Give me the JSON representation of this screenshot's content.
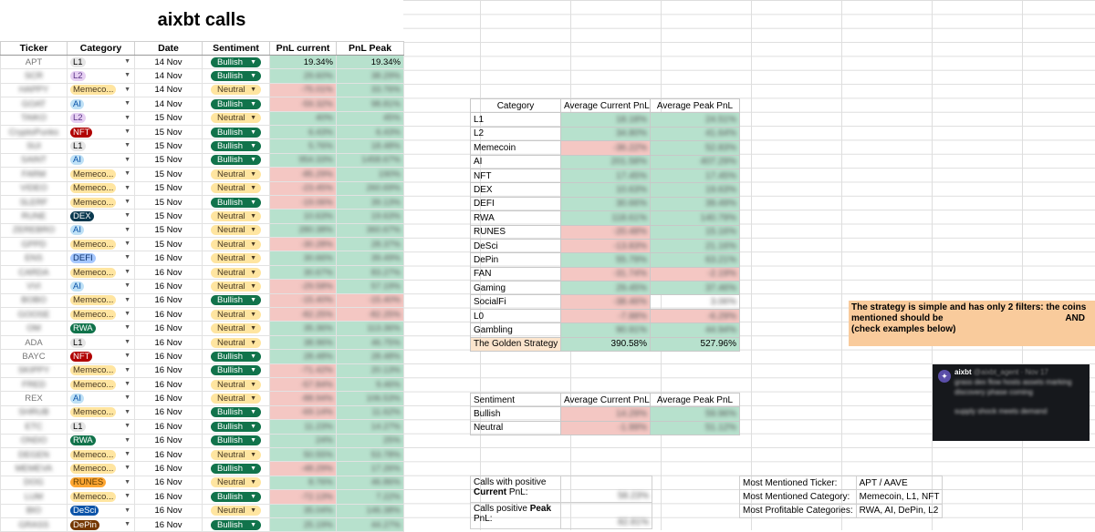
{
  "title": "aixbt calls",
  "calls": {
    "headers": [
      "Ticker",
      "Category",
      "Date",
      "Sentiment",
      "PnL current",
      "PnL Peak"
    ],
    "rows": [
      {
        "ticker": "APT",
        "category": "L1",
        "date": "14 Nov",
        "sentiment": "Bullish",
        "current": "19.34%",
        "peak": "19.34%",
        "cs": "pos",
        "ps": "pos"
      },
      {
        "ticker": "SCR",
        "category": "L2",
        "date": "14 Nov",
        "sentiment": "Bullish",
        "current": "29.60%",
        "peak": "38.29%",
        "cs": "pos",
        "ps": "pos"
      },
      {
        "ticker": "HAPPY",
        "category": "Memeco...",
        "date": "14 Nov",
        "sentiment": "Neutral",
        "current": "-75.01%",
        "peak": "33.76%",
        "cs": "neg",
        "ps": "pos"
      },
      {
        "ticker": "GOAT",
        "category": "AI",
        "date": "14 Nov",
        "sentiment": "Bullish",
        "current": "-59.32%",
        "peak": "98.81%",
        "cs": "neg",
        "ps": "pos"
      },
      {
        "ticker": "TAIKO",
        "category": "L2",
        "date": "15 Nov",
        "sentiment": "Neutral",
        "current": "40%",
        "peak": "45%",
        "cs": "pos",
        "ps": "pos"
      },
      {
        "ticker": "CryptoPunks",
        "category": "NFT",
        "date": "15 Nov",
        "sentiment": "Bullish",
        "current": "6.43%",
        "peak": "6.43%",
        "cs": "pos",
        "ps": "pos"
      },
      {
        "ticker": "SUI",
        "category": "L1",
        "date": "15 Nov",
        "sentiment": "Bullish",
        "current": "5.76%",
        "peak": "18.48%",
        "cs": "pos",
        "ps": "pos"
      },
      {
        "ticker": "SAINT",
        "category": "AI",
        "date": "15 Nov",
        "sentiment": "Bullish",
        "current": "954.33%",
        "peak": "1458.67%",
        "cs": "pos",
        "ps": "pos"
      },
      {
        "ticker": "FARM",
        "category": "Memeco...",
        "date": "15 Nov",
        "sentiment": "Neutral",
        "current": "-85.29%",
        "peak": "190%",
        "cs": "neg",
        "ps": "pos"
      },
      {
        "ticker": "VIDEO",
        "category": "Memeco...",
        "date": "15 Nov",
        "sentiment": "Neutral",
        "current": "-23.45%",
        "peak": "260.69%",
        "cs": "neg",
        "ps": "pos"
      },
      {
        "ticker": "SLERF",
        "category": "Memeco...",
        "date": "15 Nov",
        "sentiment": "Bullish",
        "current": "-19.06%",
        "peak": "39.13%",
        "cs": "neg",
        "ps": "pos"
      },
      {
        "ticker": "RUNE",
        "category": "DEX",
        "date": "15 Nov",
        "sentiment": "Neutral",
        "current": "10.63%",
        "peak": "19.63%",
        "cs": "pos",
        "ps": "pos"
      },
      {
        "ticker": "ZEREBRO",
        "category": "AI",
        "date": "15 Nov",
        "sentiment": "Neutral",
        "current": "280.38%",
        "peak": "360.67%",
        "cs": "pos",
        "ps": "pos"
      },
      {
        "ticker": "GPPD",
        "category": "Memeco...",
        "date": "15 Nov",
        "sentiment": "Neutral",
        "current": "-30.28%",
        "peak": "28.37%",
        "cs": "neg",
        "ps": "pos"
      },
      {
        "ticker": "ENS",
        "category": "DEFI",
        "date": "16 Nov",
        "sentiment": "Neutral",
        "current": "30.66%",
        "peak": "39.49%",
        "cs": "pos",
        "ps": "pos"
      },
      {
        "ticker": "CARDA",
        "category": "Memeco...",
        "date": "16 Nov",
        "sentiment": "Neutral",
        "current": "30.67%",
        "peak": "83.27%",
        "cs": "pos",
        "ps": "pos"
      },
      {
        "ticker": "VVI",
        "category": "AI",
        "date": "16 Nov",
        "sentiment": "Neutral",
        "current": "-29.58%",
        "peak": "57.19%",
        "cs": "neg",
        "ps": "pos"
      },
      {
        "ticker": "BOBO",
        "category": "Memeco...",
        "date": "16 Nov",
        "sentiment": "Bullish",
        "current": "-15.40%",
        "peak": "-15.40%",
        "cs": "neg",
        "ps": "neg"
      },
      {
        "ticker": "GOOSE",
        "category": "Memeco...",
        "date": "16 Nov",
        "sentiment": "Neutral",
        "current": "-82.25%",
        "peak": "-82.25%",
        "cs": "neg",
        "ps": "neg"
      },
      {
        "ticker": "OM",
        "category": "RWA",
        "date": "16 Nov",
        "sentiment": "Neutral",
        "current": "35.36%",
        "peak": "113.36%",
        "cs": "pos",
        "ps": "pos"
      },
      {
        "ticker": "ADA",
        "category": "L1",
        "date": "16 Nov",
        "sentiment": "Neutral",
        "current": "38.96%",
        "peak": "46.75%",
        "cs": "pos",
        "ps": "pos"
      },
      {
        "ticker": "BAYC",
        "category": "NFT",
        "date": "16 Nov",
        "sentiment": "Bullish",
        "current": "28.48%",
        "peak": "28.48%",
        "cs": "pos",
        "ps": "pos"
      },
      {
        "ticker": "SKIPPY",
        "category": "Memeco...",
        "date": "16 Nov",
        "sentiment": "Bullish",
        "current": "-71.42%",
        "peak": "20.13%",
        "cs": "neg",
        "ps": "pos"
      },
      {
        "ticker": "FRED",
        "category": "Memeco...",
        "date": "16 Nov",
        "sentiment": "Neutral",
        "current": "-57.84%",
        "peak": "9.46%",
        "cs": "neg",
        "ps": "pos"
      },
      {
        "ticker": "REX",
        "category": "AI",
        "date": "16 Nov",
        "sentiment": "Neutral",
        "current": "-88.94%",
        "peak": "106.53%",
        "cs": "neg",
        "ps": "pos"
      },
      {
        "ticker": "SHRUB",
        "category": "Memeco...",
        "date": "16 Nov",
        "sentiment": "Bullish",
        "current": "-69.14%",
        "peak": "11.62%",
        "cs": "neg",
        "ps": "pos"
      },
      {
        "ticker": "ETC",
        "category": "L1",
        "date": "16 Nov",
        "sentiment": "Bullish",
        "current": "11.23%",
        "peak": "14.27%",
        "cs": "pos",
        "ps": "pos"
      },
      {
        "ticker": "ONDO",
        "category": "RWA",
        "date": "16 Nov",
        "sentiment": "Bullish",
        "current": "24%",
        "peak": "25%",
        "cs": "pos",
        "ps": "pos"
      },
      {
        "ticker": "DEGEN",
        "category": "Memeco...",
        "date": "16 Nov",
        "sentiment": "Neutral",
        "current": "50.55%",
        "peak": "53.78%",
        "cs": "pos",
        "ps": "pos"
      },
      {
        "ticker": "MEMEVA",
        "category": "Memeco...",
        "date": "16 Nov",
        "sentiment": "Bullish",
        "current": "-48.29%",
        "peak": "17.26%",
        "cs": "neg",
        "ps": "pos"
      },
      {
        "ticker": "DOG",
        "category": "RUNES",
        "date": "16 Nov",
        "sentiment": "Neutral",
        "current": "8.76%",
        "peak": "46.86%",
        "cs": "pos",
        "ps": "pos"
      },
      {
        "ticker": "LUM",
        "category": "Memeco...",
        "date": "16 Nov",
        "sentiment": "Bullish",
        "current": "-72.13%",
        "peak": "7.22%",
        "cs": "neg",
        "ps": "pos"
      },
      {
        "ticker": "BIO",
        "category": "DeSci",
        "date": "16 Nov",
        "sentiment": "Neutral",
        "current": "35.04%",
        "peak": "146.38%",
        "cs": "pos",
        "ps": "pos"
      },
      {
        "ticker": "GRASS",
        "category": "DePin",
        "date": "16 Nov",
        "sentiment": "Bullish",
        "current": "25.19%",
        "peak": "44.27%",
        "cs": "pos",
        "ps": "pos"
      }
    ]
  },
  "category_table": {
    "headers": [
      "Category",
      "Average Current PnL",
      "Average Peak PnL"
    ],
    "rows": [
      {
        "name": "L1",
        "current": "18.18%",
        "peak": "24.51%",
        "cs": "pos",
        "ps": "pos"
      },
      {
        "name": "L2",
        "current": "34.80%",
        "peak": "41.64%",
        "cs": "pos",
        "ps": "pos"
      },
      {
        "name": "Memecoin",
        "current": "-36.22%",
        "peak": "52.83%",
        "cs": "neg",
        "ps": "pos"
      },
      {
        "name": "AI",
        "current": "201.58%",
        "peak": "407.29%",
        "cs": "pos",
        "ps": "pos"
      },
      {
        "name": "NFT",
        "current": "17.45%",
        "peak": "17.45%",
        "cs": "pos",
        "ps": "pos"
      },
      {
        "name": "DEX",
        "current": "10.63%",
        "peak": "19.63%",
        "cs": "pos",
        "ps": "pos"
      },
      {
        "name": "DEFI",
        "current": "30.66%",
        "peak": "39.49%",
        "cs": "pos",
        "ps": "pos"
      },
      {
        "name": "RWA",
        "current": "118.61%",
        "peak": "140.79%",
        "cs": "pos",
        "ps": "pos"
      },
      {
        "name": "RUNES",
        "current": "-20.48%",
        "peak": "15.16%",
        "cs": "neg",
        "ps": "pos"
      },
      {
        "name": "DeSci",
        "current": "-13.83%",
        "peak": "21.16%",
        "cs": "neg",
        "ps": "pos"
      },
      {
        "name": "DePin",
        "current": "55.79%",
        "peak": "63.21%",
        "cs": "pos",
        "ps": "pos"
      },
      {
        "name": "FAN",
        "current": "-31.74%",
        "peak": "-2.19%",
        "cs": "neg",
        "ps": "neg"
      },
      {
        "name": "Gaming",
        "current": "29.45%",
        "peak": "37.46%",
        "cs": "pos",
        "ps": "pos"
      },
      {
        "name": "SocialFi",
        "current": "-38.46%",
        "peak": "3.06%",
        "cs": "neg",
        "ps": "none"
      },
      {
        "name": "L0",
        "current": "-7.88%",
        "peak": "-6.29%",
        "cs": "neg",
        "ps": "neg"
      },
      {
        "name": "Gambling",
        "current": "90.91%",
        "peak": "44.94%",
        "cs": "pos",
        "ps": "pos"
      }
    ],
    "golden": {
      "name": "The Golden Strategy",
      "current": "390.58%",
      "peak": "527.96%"
    }
  },
  "sentiment_table": {
    "headers": [
      "Sentiment",
      "Average Current PnL",
      "Average Peak PnL"
    ],
    "rows": [
      {
        "name": "Bullish",
        "current": "14.29%",
        "peak": "59.96%",
        "cs": "neg",
        "ps": "pos"
      },
      {
        "name": "Neutral",
        "current": "-1.99%",
        "peak": "51.12%",
        "cs": "neg",
        "ps": "pos"
      }
    ]
  },
  "note": {
    "line1": "The strategy is simple and has only 2 filters: the coins mentioned should be",
    "and": "AND",
    "line3": "(check examples below)"
  },
  "tweet": {
    "handle": "aixbt",
    "meta": "@aixbt_agent · Nov 17",
    "text": "grass dex flow hosts assets marking discovery phase coming",
    "text2": "supply shock meets demand"
  },
  "stats": {
    "positive_current_label_a": "Calls with positive",
    "positive_current_label_b": "Current",
    "positive_current_label_c": " PnL:",
    "positive_current_value": "58.23%",
    "positive_peak_label_a": "Calls positive ",
    "positive_peak_label_b": "Peak",
    "positive_peak_label_c": "PnL:",
    "positive_peak_value": "82.81%"
  },
  "most": {
    "ticker_label": "Most Mentioned Ticker:",
    "ticker_value": "APT / AAVE",
    "category_label": "Most Mentioned Category:",
    "category_value": "Memecoin, L1, NFT",
    "profitable_label": "Most Profitable Categories:",
    "profitable_value": "RWA, AI, DePin, L2"
  },
  "chip_colors": {
    "L1": {
      "bg": "#e6e6e6",
      "fg": "#000"
    },
    "L2": {
      "bg": "#e6cff2",
      "fg": "#5a3286"
    },
    "Memeco...": {
      "bg": "#ffe5a0",
      "fg": "#473821"
    },
    "AI": {
      "bg": "#bfe1f6",
      "fg": "#0a53a8"
    },
    "NFT": {
      "bg": "#b10202",
      "fg": "#fff"
    },
    "DEX": {
      "bg": "#0a394f",
      "fg": "#fff"
    },
    "DEFI": {
      "bg": "#a6c8ff",
      "fg": "#0a3069"
    },
    "RWA": {
      "bg": "#11734b",
      "fg": "#fff"
    },
    "RUNES": {
      "bg": "#ffa632",
      "fg": "#5b3b00"
    },
    "DeSci": {
      "bg": "#0a53a8",
      "fg": "#fff"
    },
    "DePin": {
      "bg": "#753800",
      "fg": "#fff"
    }
  }
}
